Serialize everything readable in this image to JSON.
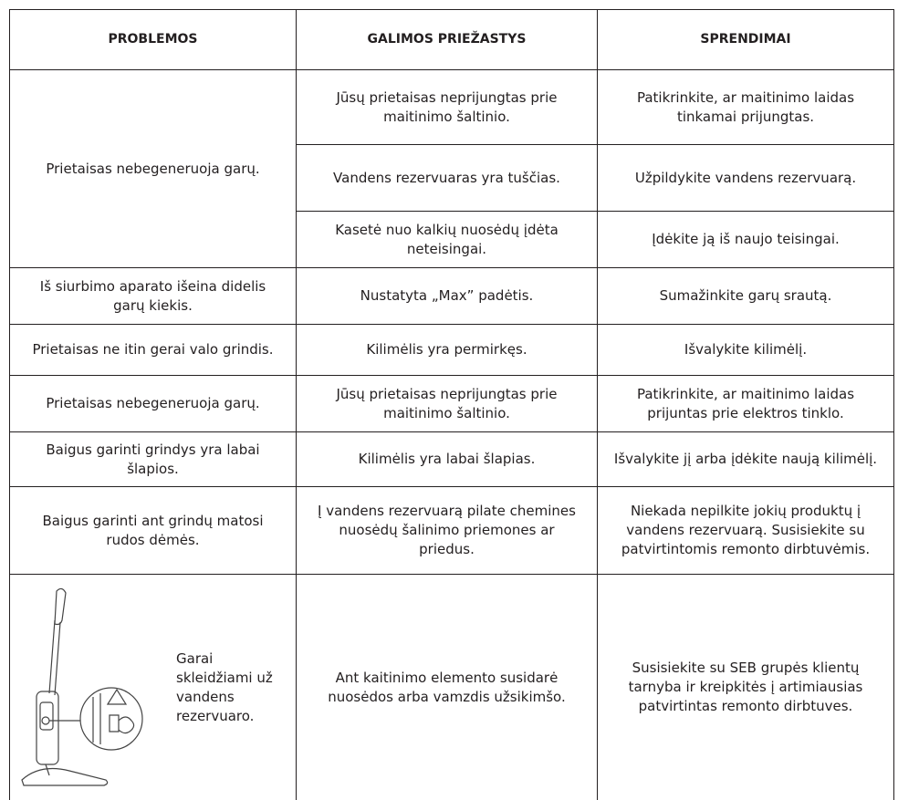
{
  "table": {
    "columns": [
      "PROBLEMOS",
      "GALIMOS PRIEŽASTYS",
      "SPRENDIMAI"
    ],
    "groups": [
      {
        "problem": "Prietaisas nebegeneruoja garų.",
        "items": [
          {
            "cause": "Jūsų prietaisas neprijungtas prie maitinimo šaltinio.",
            "solution": "Patikrinkite, ar maitinimo laidas tinkamai prijungtas."
          },
          {
            "cause": "Vandens rezervuaras yra tuščias.",
            "solution": "Užpildykite vandens rezervuarą."
          },
          {
            "cause": "Kasetė nuo kalkių nuosėdų įdėta neteisingai.",
            "solution": "Įdėkite ją iš naujo teisingai."
          }
        ]
      },
      {
        "problem": "Iš siurbimo aparato išeina didelis garų kiekis.",
        "items": [
          {
            "cause": "Nustatyta „Max” padėtis.",
            "solution": "Sumažinkite garų srautą."
          }
        ]
      },
      {
        "problem": "Prietaisas ne itin gerai valo grindis.",
        "items": [
          {
            "cause": "Kilimėlis yra permirkęs.",
            "solution": "Išvalykite kilimėlį."
          }
        ]
      },
      {
        "problem": "Prietaisas nebegeneruoja garų.",
        "items": [
          {
            "cause": "Jūsų prietaisas neprijungtas prie maitinimo šaltinio.",
            "solution": "Patikrinkite, ar maitinimo laidas prijuntas prie elektros tinklo."
          }
        ]
      },
      {
        "problem": "Baigus garinti grindys yra labai šlapios.",
        "items": [
          {
            "cause": "Kilimėlis yra labai šlapias.",
            "solution": "Išvalykite jį arba įdėkite naują kilimėlį."
          }
        ]
      },
      {
        "problem": "Baigus garinti ant grindų matosi rudos dėmės.",
        "items": [
          {
            "cause": "Į vandens rezervuarą pilate chemines nuosėdų šalinimo priemones ar priedus.",
            "solution": "Niekada nepilkite jokių produktų į vandens rezervuarą. Susisiekite su patvirtintomis remonto dirbtuvėmis."
          }
        ]
      },
      {
        "problem": "Garai skleidžiami už vandens rezervuaro.",
        "items": [
          {
            "cause": "Ant kaitinimo elemento susidarė nuosėdos arba vamzdis užsikimšo.",
            "solution": "Susisiekite su SEB grupės klientų tarnyba ir kreipkitės į artimiausias patvirtintas remonto dirbtuves."
          }
        ]
      }
    ]
  }
}
